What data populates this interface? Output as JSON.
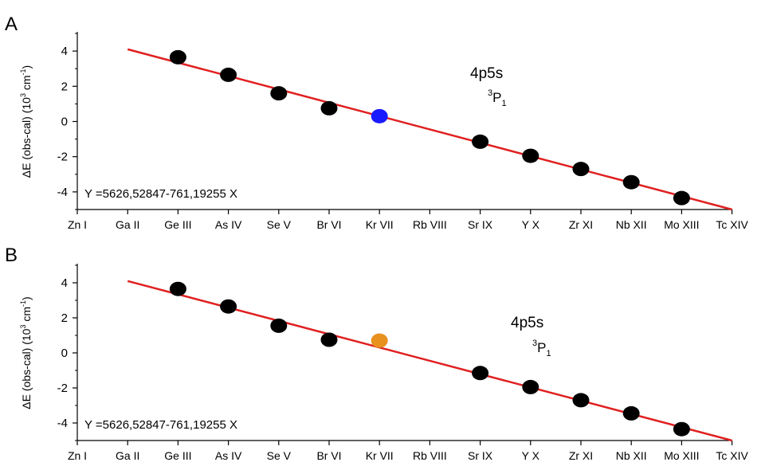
{
  "chart_data": [
    {
      "type": "scatter",
      "panel_label": "A",
      "categories": [
        "Zn I",
        "Ga II",
        "Ge III",
        "As IV",
        "Se V",
        "Br VI",
        "Kr VII",
        "Rb VIII",
        "Sr IX",
        "Y X",
        "Zr XI",
        "Nb XII",
        "Mo XIII",
        "Tc XIV"
      ],
      "ylabel": "ΔE (obs-cal) (10³ cm⁻¹)",
      "ylabel_parts": {
        "main": "ΔE (obs-cal) (10",
        "sup1": "3",
        "mid": " cm",
        "sup2": "-1",
        "end": ")"
      },
      "ylim": [
        -5,
        5
      ],
      "yticks": [
        -4,
        -2,
        0,
        2,
        4
      ],
      "annotation": {
        "main": "4p5s",
        "sup": "3",
        "term": "P",
        "sub": "1"
      },
      "equation": "Y =5626,52847-761,19255 X",
      "fit_line": {
        "x_start": 1,
        "y_start": 4.1,
        "x_end": 13,
        "y_end": -5.0,
        "color": "#e02020"
      },
      "points": [
        {
          "x": 2,
          "y": 3.65,
          "color": "#000000"
        },
        {
          "x": 3,
          "y": 2.65,
          "color": "#000000"
        },
        {
          "x": 4,
          "y": 1.6,
          "color": "#000000"
        },
        {
          "x": 5,
          "y": 0.75,
          "color": "#000000"
        },
        {
          "x": 6,
          "y": 0.3,
          "color": "#1a1aff"
        },
        {
          "x": 8,
          "y": -1.15,
          "color": "#000000"
        },
        {
          "x": 9,
          "y": -1.95,
          "color": "#000000"
        },
        {
          "x": 10,
          "y": -2.7,
          "color": "#000000"
        },
        {
          "x": 11,
          "y": -3.45,
          "color": "#000000"
        },
        {
          "x": 12,
          "y": -4.35,
          "color": "#000000"
        }
      ]
    },
    {
      "type": "scatter",
      "panel_label": "B",
      "categories": [
        "Zn I",
        "Ga II",
        "Ge III",
        "As IV",
        "Se V",
        "Br VI",
        "Kr VII",
        "Rb VIII",
        "Sr IX",
        "Y X",
        "Zr XI",
        "Nb XII",
        "Mo XIII",
        "Tc XIV"
      ],
      "ylabel": "ΔE (obs-cal) (10³ cm⁻¹)",
      "ylabel_parts": {
        "main": "ΔE (obs-cal) (10",
        "sup1": "3",
        "mid": " cm",
        "sup2": "-1",
        "end": ")"
      },
      "ylim": [
        -5,
        5
      ],
      "yticks": [
        -4,
        -2,
        0,
        2,
        4
      ],
      "annotation": {
        "main": "4p5s",
        "sup": "3",
        "term": "P",
        "sub": "1"
      },
      "equation": "Y =5626,52847-761,19255 X",
      "fit_line": {
        "x_start": 1,
        "y_start": 4.1,
        "x_end": 13,
        "y_end": -5.0,
        "color": "#e02020"
      },
      "points": [
        {
          "x": 2,
          "y": 3.65,
          "color": "#000000"
        },
        {
          "x": 3,
          "y": 2.65,
          "color": "#000000"
        },
        {
          "x": 4,
          "y": 1.55,
          "color": "#000000"
        },
        {
          "x": 5,
          "y": 0.75,
          "color": "#000000"
        },
        {
          "x": 6,
          "y": 0.7,
          "color": "#e8911e"
        },
        {
          "x": 8,
          "y": -1.15,
          "color": "#000000"
        },
        {
          "x": 9,
          "y": -1.95,
          "color": "#000000"
        },
        {
          "x": 10,
          "y": -2.7,
          "color": "#000000"
        },
        {
          "x": 11,
          "y": -3.45,
          "color": "#000000"
        },
        {
          "x": 12,
          "y": -4.35,
          "color": "#000000"
        }
      ]
    }
  ]
}
